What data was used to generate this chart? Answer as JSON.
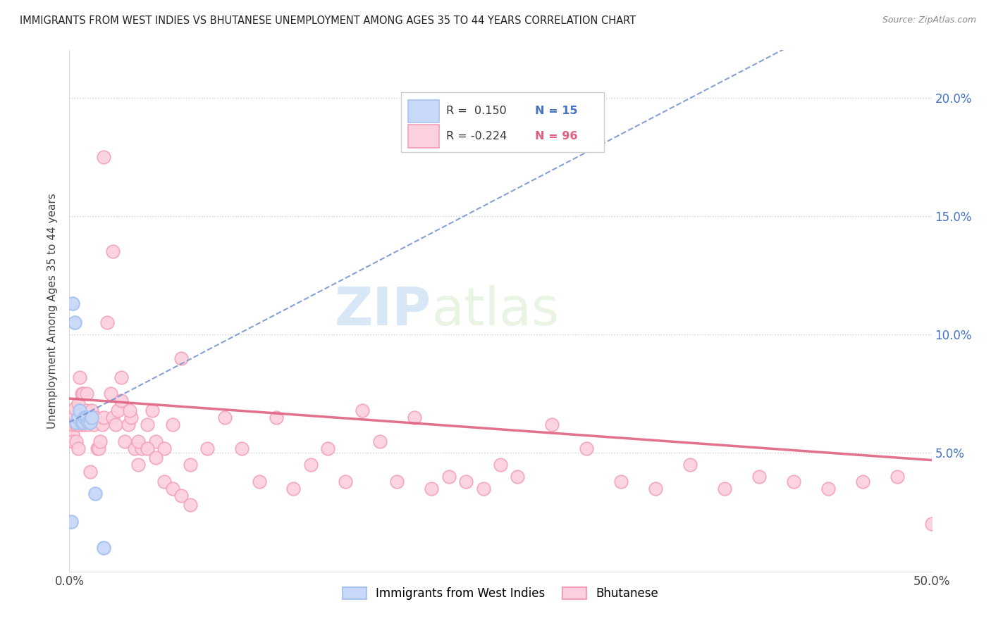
{
  "title": "IMMIGRANTS FROM WEST INDIES VS BHUTANESE UNEMPLOYMENT AMONG AGES 35 TO 44 YEARS CORRELATION CHART",
  "source": "Source: ZipAtlas.com",
  "ylabel": "Unemployment Among Ages 35 to 44 years",
  "x_min": 0.0,
  "x_max": 0.5,
  "y_min": 0.0,
  "y_max": 0.22,
  "x_tick_positions": [
    0.0,
    0.5
  ],
  "x_tick_labels": [
    "0.0%",
    "50.0%"
  ],
  "y_ticks_right": [
    0.05,
    0.1,
    0.15,
    0.2
  ],
  "y_tick_labels_right": [
    "5.0%",
    "10.0%",
    "15.0%",
    "20.0%"
  ],
  "legend_label1": "Immigrants from West Indies",
  "legend_label2": "Bhutanese",
  "blue_color": "#a8c4f0",
  "pink_color": "#f4a0b8",
  "blue_dot_facecolor": "#c8d8f8",
  "pink_dot_facecolor": "#fcd0dc",
  "blue_line_color": "#7090d0",
  "pink_line_color": "#e06080",
  "watermark": "ZIPatlas",
  "blue_r": 0.15,
  "blue_n": 15,
  "pink_r": -0.224,
  "pink_n": 96,
  "blue_intercept": 0.063,
  "blue_slope": 0.38,
  "pink_intercept": 0.073,
  "pink_slope": -0.052,
  "blue_x": [
    0.001,
    0.002,
    0.003,
    0.004,
    0.005,
    0.006,
    0.007,
    0.008,
    0.009,
    0.01,
    0.011,
    0.012,
    0.013,
    0.015,
    0.02
  ],
  "blue_y": [
    0.021,
    0.113,
    0.105,
    0.063,
    0.065,
    0.068,
    0.063,
    0.063,
    0.065,
    0.065,
    0.063,
    0.063,
    0.065,
    0.033,
    0.01
  ],
  "pink_x": [
    0.001,
    0.001,
    0.002,
    0.002,
    0.002,
    0.003,
    0.003,
    0.003,
    0.004,
    0.004,
    0.005,
    0.005,
    0.005,
    0.005,
    0.006,
    0.006,
    0.007,
    0.007,
    0.007,
    0.008,
    0.008,
    0.009,
    0.01,
    0.01,
    0.011,
    0.012,
    0.012,
    0.013,
    0.014,
    0.015,
    0.016,
    0.017,
    0.018,
    0.019,
    0.02,
    0.022,
    0.024,
    0.025,
    0.027,
    0.028,
    0.03,
    0.032,
    0.034,
    0.036,
    0.038,
    0.04,
    0.042,
    0.045,
    0.048,
    0.05,
    0.055,
    0.06,
    0.065,
    0.07,
    0.08,
    0.09,
    0.1,
    0.11,
    0.12,
    0.13,
    0.14,
    0.15,
    0.16,
    0.17,
    0.18,
    0.19,
    0.2,
    0.21,
    0.22,
    0.23,
    0.24,
    0.25,
    0.26,
    0.28,
    0.3,
    0.32,
    0.34,
    0.36,
    0.38,
    0.4,
    0.42,
    0.44,
    0.46,
    0.48,
    0.5,
    0.02,
    0.025,
    0.03,
    0.035,
    0.04,
    0.045,
    0.05,
    0.055,
    0.06,
    0.065,
    0.07
  ],
  "pink_y": [
    0.065,
    0.063,
    0.058,
    0.055,
    0.062,
    0.065,
    0.066,
    0.069,
    0.055,
    0.062,
    0.071,
    0.062,
    0.065,
    0.052,
    0.082,
    0.065,
    0.062,
    0.075,
    0.063,
    0.075,
    0.065,
    0.062,
    0.075,
    0.068,
    0.062,
    0.065,
    0.042,
    0.068,
    0.062,
    0.065,
    0.052,
    0.052,
    0.055,
    0.062,
    0.065,
    0.105,
    0.075,
    0.065,
    0.062,
    0.068,
    0.072,
    0.055,
    0.062,
    0.065,
    0.052,
    0.045,
    0.052,
    0.062,
    0.068,
    0.055,
    0.052,
    0.062,
    0.09,
    0.045,
    0.052,
    0.065,
    0.052,
    0.038,
    0.065,
    0.035,
    0.045,
    0.052,
    0.038,
    0.068,
    0.055,
    0.038,
    0.065,
    0.035,
    0.04,
    0.038,
    0.035,
    0.045,
    0.04,
    0.062,
    0.052,
    0.038,
    0.035,
    0.045,
    0.035,
    0.04,
    0.038,
    0.035,
    0.038,
    0.04,
    0.02,
    0.175,
    0.135,
    0.082,
    0.068,
    0.055,
    0.052,
    0.048,
    0.038,
    0.035,
    0.032,
    0.028
  ]
}
